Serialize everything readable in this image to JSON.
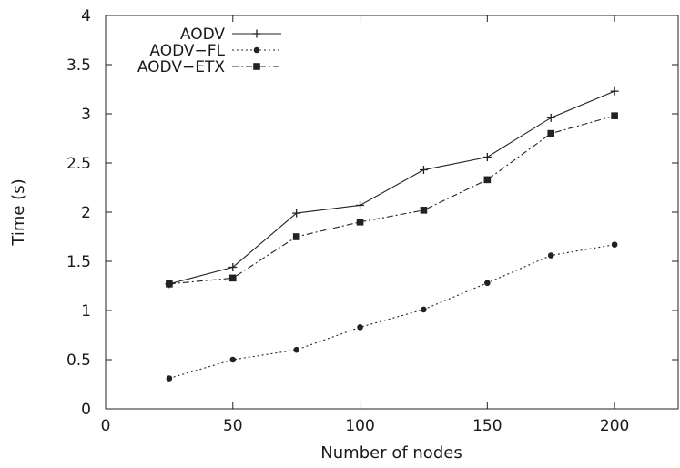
{
  "chart_data": {
    "type": "line",
    "title": "",
    "xlabel": "Number of nodes",
    "ylabel": "Time (s)",
    "xlim": [
      0,
      225
    ],
    "ylim": [
      0,
      4
    ],
    "xticks": [
      0,
      50,
      100,
      150,
      200
    ],
    "yticks": [
      0,
      0.5,
      1,
      1.5,
      2,
      2.5,
      3,
      3.5,
      4
    ],
    "x_tick_labels": [
      "0",
      "50",
      "100",
      "150",
      "200"
    ],
    "y_tick_labels": [
      "0",
      "0.5",
      "1",
      "1.5",
      "2",
      "2.5",
      "3",
      "3.5",
      "4"
    ],
    "grid": false,
    "legend_position": "top-left",
    "x": [
      25,
      50,
      75,
      100,
      125,
      150,
      175,
      200
    ],
    "series": [
      {
        "name": "AODV",
        "marker": "plus",
        "line_style": "solid",
        "values": [
          1.27,
          1.44,
          1.99,
          2.07,
          2.43,
          2.56,
          2.96,
          3.23
        ]
      },
      {
        "name": "AODV−FL",
        "marker": "circle",
        "line_style": "dotted",
        "values": [
          0.31,
          0.5,
          0.6,
          0.83,
          1.01,
          1.28,
          1.56,
          1.67
        ]
      },
      {
        "name": "AODV−ETX",
        "marker": "square",
        "line_style": "dash-dot",
        "values": [
          1.27,
          1.33,
          1.75,
          1.9,
          2.02,
          2.33,
          2.8,
          2.98
        ]
      }
    ]
  }
}
